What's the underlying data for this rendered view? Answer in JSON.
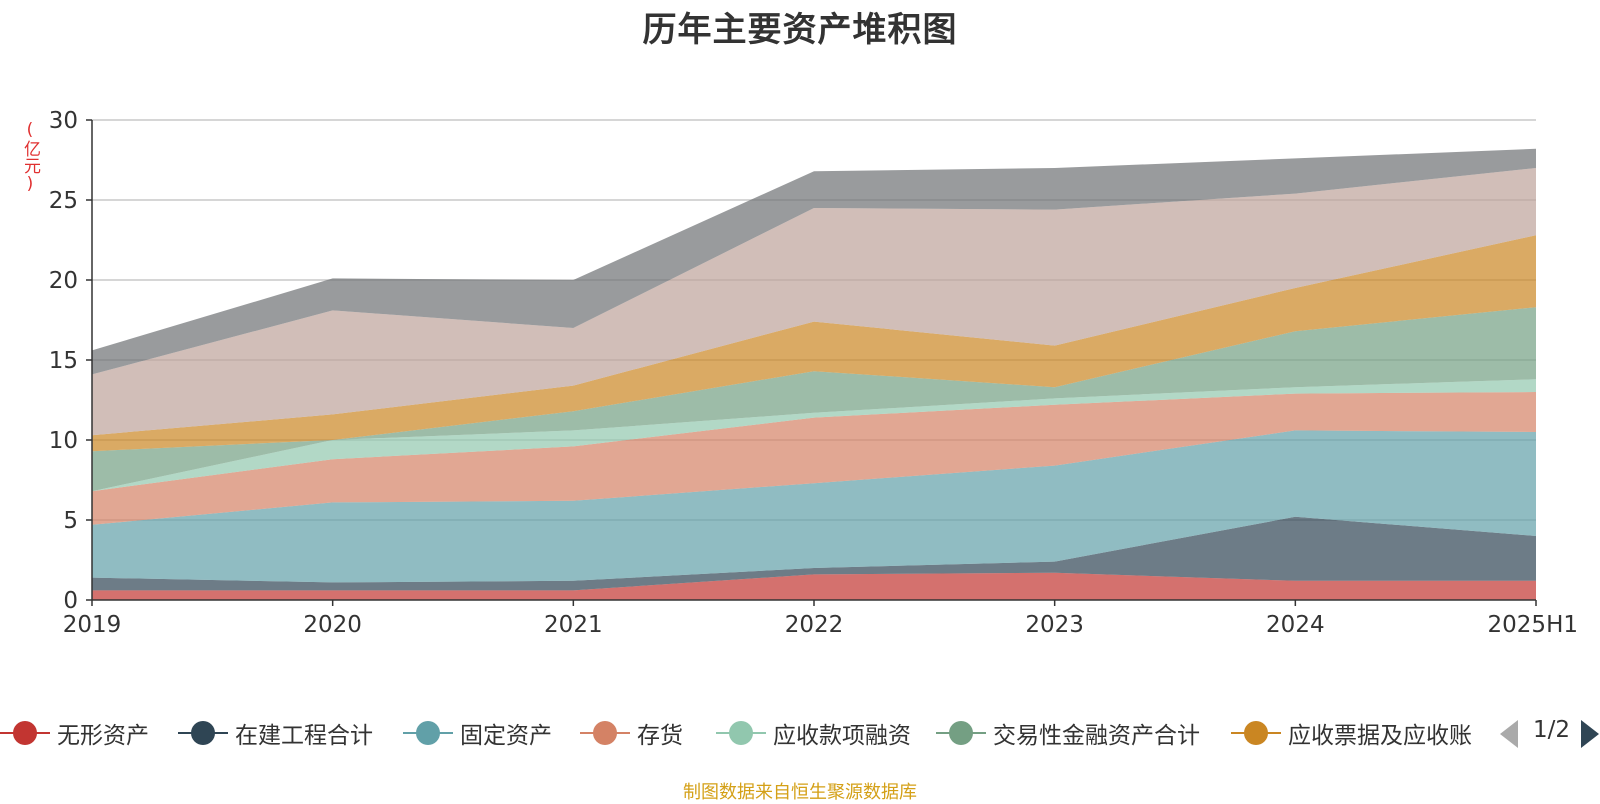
{
  "chart_data": {
    "type": "area",
    "title": "历年主要资产堆积图",
    "ylabel": "(亿元)",
    "ylim": [
      0,
      30
    ],
    "yticks": [
      0,
      5,
      10,
      15,
      20,
      25,
      30
    ],
    "categories": [
      "2019",
      "2020",
      "2021",
      "2022",
      "2023",
      "2024",
      "2025H1"
    ],
    "grid": true,
    "legend_position": "bottom",
    "stacked": true,
    "series": [
      {
        "name": "无形资产",
        "color": "#c23531",
        "values": [
          0.6,
          0.6,
          0.6,
          1.6,
          1.7,
          1.2,
          1.2
        ]
      },
      {
        "name": "在建工程合计",
        "color": "#2f4554",
        "values": [
          0.8,
          0.5,
          0.6,
          0.4,
          0.7,
          4.0,
          2.8
        ]
      },
      {
        "name": "固定资产",
        "color": "#61a0a8",
        "values": [
          3.3,
          5.0,
          5.0,
          5.3,
          6.0,
          5.4,
          6.5
        ]
      },
      {
        "name": "存货",
        "color": "#d48265",
        "values": [
          2.1,
          2.7,
          3.4,
          4.1,
          3.8,
          2.3,
          2.5
        ]
      },
      {
        "name": "应收款项融资",
        "color": "#91c7ae",
        "values": [
          0.0,
          1.2,
          1.0,
          0.3,
          0.4,
          0.4,
          0.8
        ]
      },
      {
        "name": "交易性金融资产合计",
        "color": "#749f83",
        "values": [
          2.5,
          0.0,
          1.2,
          2.6,
          0.7,
          3.5,
          4.5
        ]
      },
      {
        "name": "应收票据及应收账款",
        "color": "#ca8622",
        "values": [
          1.0,
          1.6,
          1.6,
          3.1,
          2.6,
          2.7,
          4.5
        ]
      },
      {
        "color": "#bda29a",
        "values": [
          3.8,
          6.5,
          3.6,
          7.1,
          8.5,
          5.9,
          4.2
        ]
      },
      {
        "color": "#6e7074",
        "values": [
          1.5,
          2.0,
          3.0,
          2.3,
          2.6,
          2.2,
          1.2
        ]
      }
    ]
  },
  "legend": {
    "items": [
      "无形资产",
      "在建工程合计",
      "固定资产",
      "存货",
      "应收款项融资",
      "交易性金融资产合计",
      "应收票据及应收账"
    ],
    "page": "1/2"
  },
  "source": "制图数据来自恒生聚源数据库"
}
